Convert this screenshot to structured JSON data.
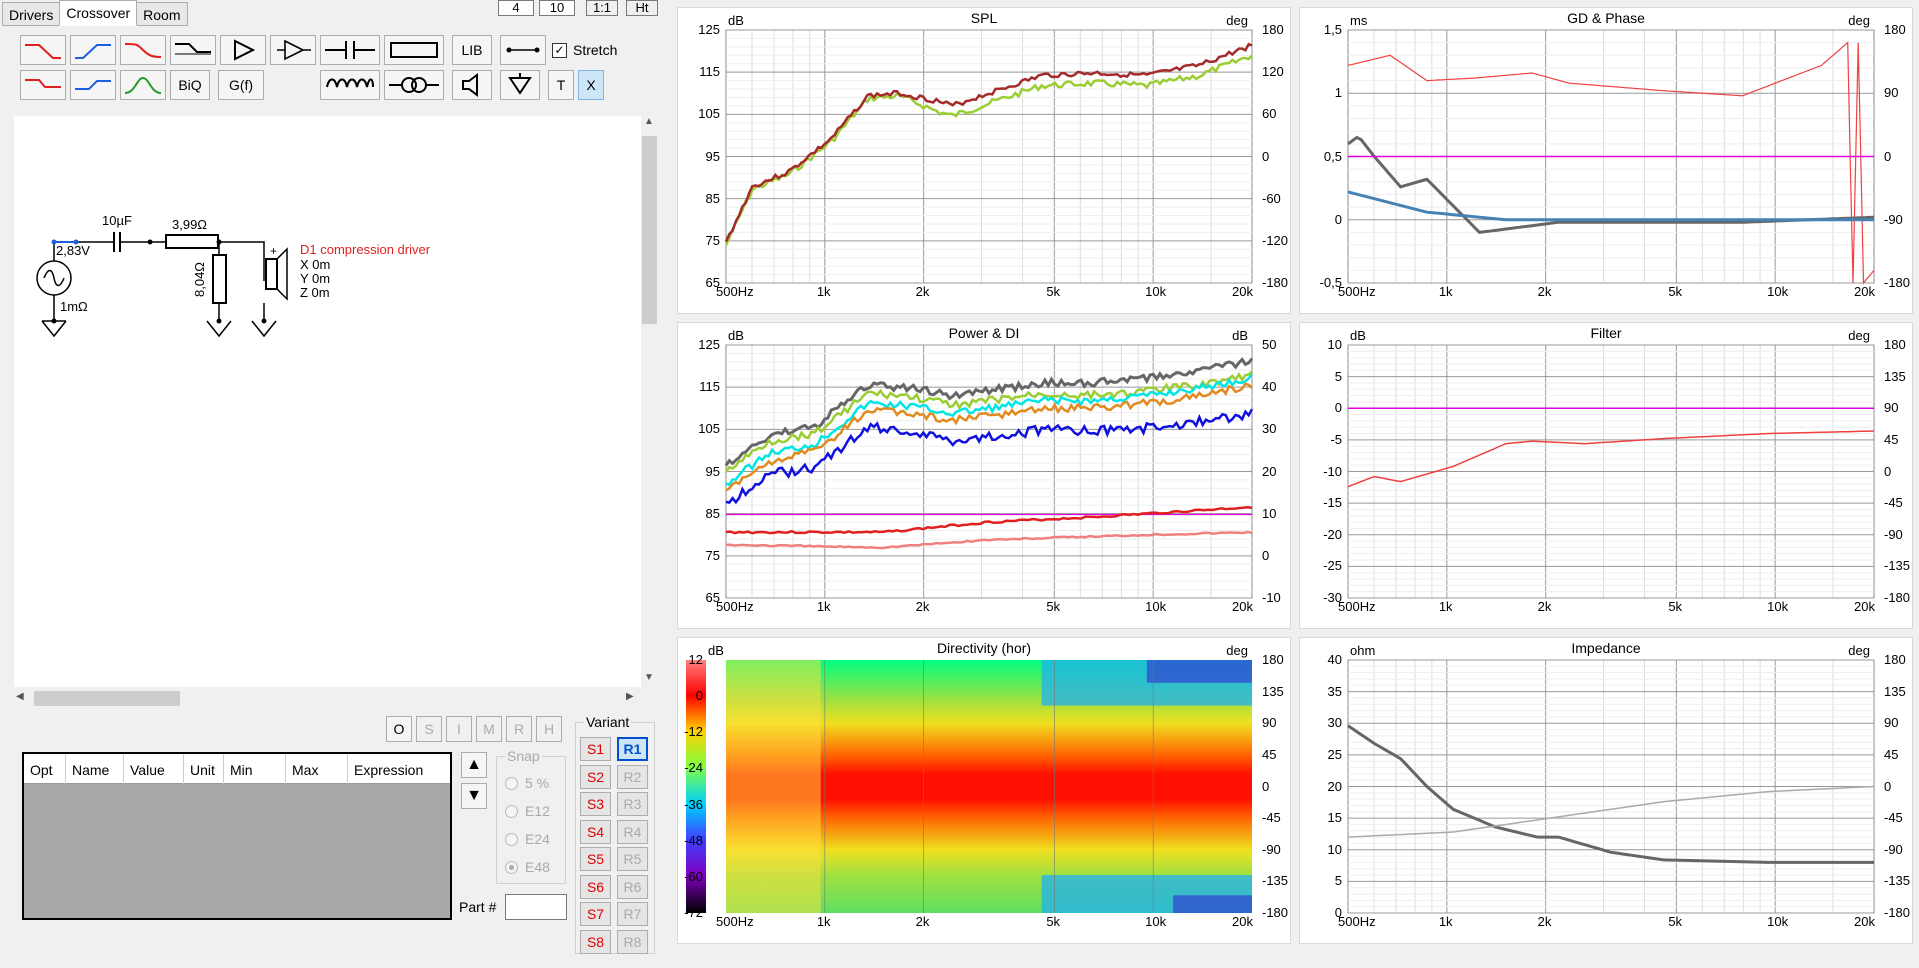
{
  "tabs": [
    "Drivers",
    "Crossover",
    "Room"
  ],
  "spinners": [
    "4",
    "10",
    "1:1",
    "Ht"
  ],
  "toolbar": {
    "biq": "BiQ",
    "gf": "G(f)",
    "lib": "LIB",
    "stretch": "Stretch",
    "t": "T",
    "x": "X"
  },
  "schematic": {
    "voltage": "2,83V",
    "src_res": "1mΩ",
    "cap": "10µF",
    "series_res": "3,99Ω",
    "shunt_res": "8,04Ω",
    "driver_name": "D1 compression driver",
    "x": "X 0m",
    "y": "Y 0m",
    "z": "Z 0m"
  },
  "opt_buttons": [
    "O",
    "S",
    "I",
    "M",
    "R",
    "H"
  ],
  "table_headers": [
    "Opt",
    "Name",
    "Value",
    "Unit",
    "Min",
    "Max",
    "Expression"
  ],
  "snap": {
    "label": "Snap",
    "options": [
      "5 %",
      "E12",
      "E24",
      "E48"
    ],
    "selected": "E48"
  },
  "variant": {
    "label": "Variant",
    "s": [
      "S1",
      "S2",
      "S3",
      "S4",
      "S5",
      "S6",
      "S7",
      "S8"
    ],
    "r": [
      "R1",
      "R2",
      "R3",
      "R4",
      "R5",
      "R6",
      "R7",
      "R8"
    ],
    "active": "R1"
  },
  "part_label": "Part #",
  "x_ticks": [
    "500Hz",
    "1k",
    "2k",
    "5k",
    "10k",
    "20k"
  ],
  "charts": [
    {
      "title": "SPL",
      "left_unit": "dB",
      "right_unit": "deg",
      "left_ticks": [
        "125",
        "115",
        "105",
        "95",
        "85",
        "75",
        "65"
      ],
      "right_ticks": [
        "180",
        "120",
        "60",
        "0",
        "-60",
        "-120",
        "-180"
      ]
    },
    {
      "title": "GD & Phase",
      "left_unit": "ms",
      "right_unit": "deg",
      "left_ticks": [
        "1,5",
        "1",
        "0,5",
        "0",
        "-0,5"
      ],
      "right_ticks": [
        "180",
        "90",
        "0",
        "-90",
        "-180"
      ]
    },
    {
      "title": "Power & DI",
      "left_unit": "dB",
      "right_unit": "dB",
      "left_ticks": [
        "125",
        "115",
        "105",
        "95",
        "85",
        "75",
        "65"
      ],
      "right_ticks": [
        "50",
        "40",
        "30",
        "20",
        "10",
        "0",
        "-10"
      ]
    },
    {
      "title": "Filter",
      "left_unit": "dB",
      "right_unit": "deg",
      "left_ticks": [
        "10",
        "5",
        "0",
        "-5",
        "-10",
        "-15",
        "-20",
        "-25",
        "-30"
      ],
      "right_ticks": [
        "180",
        "135",
        "90",
        "45",
        "0",
        "-45",
        "-90",
        "-135",
        "-180"
      ]
    },
    {
      "title": "Directivity (hor)",
      "left_unit": "dB",
      "right_unit": "deg",
      "left_ticks": [
        "12",
        "0",
        "-12",
        "-24",
        "-36",
        "-48",
        "-60",
        "-72"
      ],
      "right_ticks": [
        "180",
        "135",
        "90",
        "45",
        "0",
        "-45",
        "-90",
        "-135",
        "-180"
      ]
    },
    {
      "title": "Impedance",
      "left_unit": "ohm",
      "right_unit": "deg",
      "left_ticks": [
        "40",
        "35",
        "30",
        "25",
        "20",
        "15",
        "10",
        "5",
        "0"
      ],
      "right_ticks": [
        "180",
        "135",
        "90",
        "45",
        "0",
        "-45",
        "-90",
        "-135",
        "-180"
      ]
    }
  ],
  "colors": {
    "red": "#e02020",
    "blue": "#1e5fe0",
    "green": "#2a9a2a",
    "magenta": "#e000e0"
  }
}
